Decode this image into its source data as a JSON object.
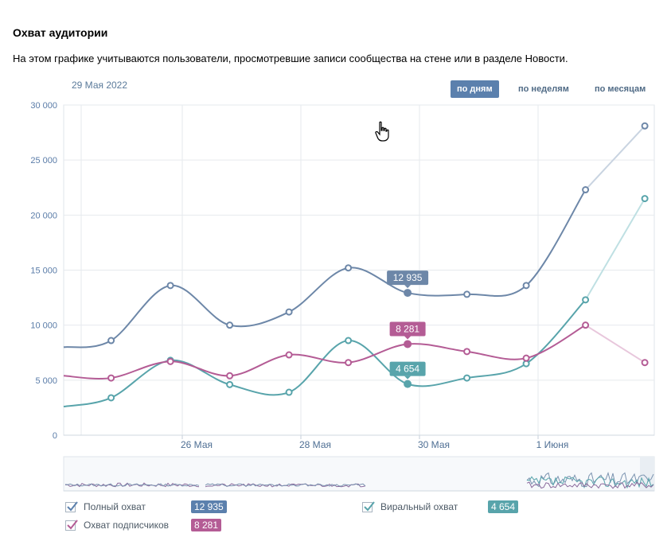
{
  "header": {
    "title": "Охват аудитории",
    "description": "На этом графике учитываются пользователи, просмотревшие записи сообщества на стене или в разделе Новости.",
    "date": "29 Мая 2022"
  },
  "period_tabs": [
    {
      "label": "по дням",
      "active": true
    },
    {
      "label": "по неделям",
      "active": false
    },
    {
      "label": "по месяцам",
      "active": false
    }
  ],
  "chart_data": {
    "type": "line",
    "y_ticks": [
      "30 000",
      "25 000",
      "20 000",
      "15 000",
      "10 000",
      "5 000",
      "0"
    ],
    "ylim": [
      0,
      30000
    ],
    "x_ticks": [
      {
        "label": "26 Мая",
        "x": 2
      },
      {
        "label": "28 Мая",
        "x": 4
      },
      {
        "label": "30 Мая",
        "x": 6
      },
      {
        "label": "1 Июня",
        "x": 8
      }
    ],
    "grid": true,
    "series": [
      {
        "name": "Полный охват",
        "color": "#6d87a8",
        "x": [
          0,
          0.8,
          1.8,
          2.8,
          3.8,
          4.8,
          5.8,
          6.8,
          7.8,
          8.8,
          9.8
        ],
        "values": [
          8000,
          8600,
          13600,
          10000,
          11200,
          15200,
          12935,
          12800,
          13600,
          22300,
          28100
        ],
        "partial_from": 9
      },
      {
        "name": "Виральный охват",
        "color": "#58a4ab",
        "x": [
          0,
          0.8,
          1.8,
          2.8,
          3.8,
          4.8,
          5.8,
          6.8,
          7.8,
          8.8,
          9.8
        ],
        "values": [
          2600,
          3400,
          6800,
          4600,
          3900,
          8600,
          4654,
          5200,
          6500,
          12300,
          21500
        ],
        "partial_from": 9
      },
      {
        "name": "Охват подписчиков",
        "color": "#b45c95",
        "x": [
          0,
          0.8,
          1.8,
          2.8,
          3.8,
          4.8,
          5.8,
          6.8,
          7.8,
          8.8,
          9.8
        ],
        "values": [
          5400,
          5200,
          6700,
          5400,
          7300,
          6600,
          8281,
          7600,
          7000,
          10000,
          6600
        ],
        "partial_from": 9
      }
    ],
    "tooltips": [
      {
        "series": 0,
        "index": 6,
        "label": "12 935"
      },
      {
        "series": 2,
        "index": 6,
        "label": "8 281"
      },
      {
        "series": 1,
        "index": 6,
        "label": "4 654"
      }
    ]
  },
  "legend": [
    {
      "label": "Полный охват",
      "value": "12 935",
      "color": "#5b80ad"
    },
    {
      "label": "Охват подписчиков",
      "value": "8 281",
      "color": "#b45c95"
    },
    {
      "label": "Виральный охват",
      "value": "4 654",
      "color": "#58a4ab"
    }
  ]
}
